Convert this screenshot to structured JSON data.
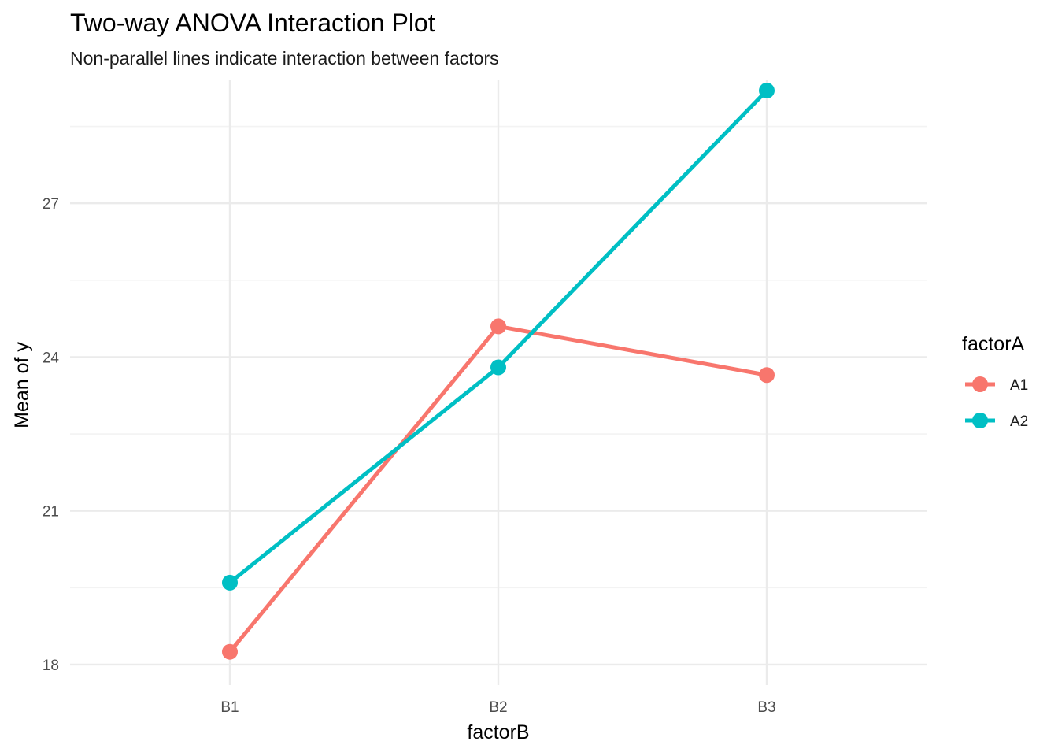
{
  "chart_data": {
    "type": "line",
    "title": "Two-way ANOVA Interaction Plot",
    "subtitle": "Non-parallel lines indicate interaction between factors",
    "xlabel": "factorB",
    "ylabel": "Mean of y",
    "categories": [
      "B1",
      "B2",
      "B3"
    ],
    "y_ticks": [
      18,
      21,
      24,
      27
    ],
    "ylim": [
      17.6,
      29.4
    ],
    "grid": true,
    "legend": {
      "title": "factorA",
      "position": "right"
    },
    "series": [
      {
        "name": "A1",
        "color": "#F8766D",
        "values": [
          18.25,
          24.6,
          23.65
        ]
      },
      {
        "name": "A2",
        "color": "#00BFC4",
        "values": [
          19.6,
          23.8,
          29.2
        ]
      }
    ]
  }
}
